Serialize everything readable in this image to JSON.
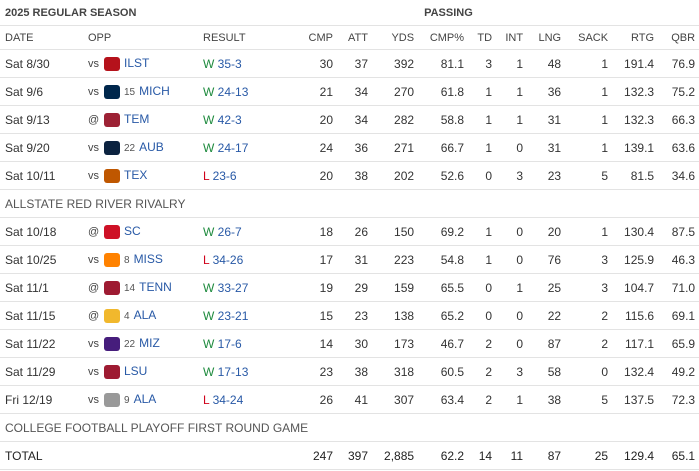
{
  "header": {
    "season": "2025 REGULAR SEASON",
    "group": "PASSING",
    "columns": [
      "DATE",
      "OPP",
      "RESULT",
      "CMP",
      "ATT",
      "YDS",
      "CMP%",
      "TD",
      "INT",
      "LNG",
      "SACK",
      "RTG",
      "QBR"
    ]
  },
  "rows": [
    {
      "date": "Sat 8/30",
      "site": "vs",
      "team": "ILST",
      "result": "W",
      "score": "35-3",
      "stats": [
        "30",
        "37",
        "392",
        "81.1",
        "3",
        "1",
        "48",
        "1",
        "191.4",
        "76.9"
      ]
    },
    {
      "date": "Sat 9/6",
      "site": "vs",
      "rank": "15",
      "team": "MICH",
      "result": "W",
      "score": "24-13",
      "stats": [
        "21",
        "34",
        "270",
        "61.8",
        "1",
        "1",
        "36",
        "1",
        "132.3",
        "75.2"
      ]
    },
    {
      "date": "Sat 9/13",
      "site": "@",
      "team": "TEM",
      "result": "W",
      "score": "42-3",
      "stats": [
        "20",
        "34",
        "282",
        "58.8",
        "1",
        "1",
        "31",
        "1",
        "132.3",
        "66.3"
      ]
    },
    {
      "date": "Sat 9/20",
      "site": "vs",
      "rank": "22",
      "team": "AUB",
      "result": "W",
      "score": "24-17",
      "stats": [
        "24",
        "36",
        "271",
        "66.7",
        "1",
        "0",
        "31",
        "1",
        "139.1",
        "63.6"
      ]
    },
    {
      "date": "Sat 10/11",
      "site": "vs",
      "team": "TEX",
      "result": "L",
      "score": "23-6",
      "stats": [
        "20",
        "38",
        "202",
        "52.6",
        "0",
        "3",
        "23",
        "5",
        "81.5",
        "34.6"
      ]
    },
    {
      "section": "ALLSTATE RED RIVER RIVALRY"
    },
    {
      "date": "Sat 10/18",
      "site": "@",
      "team": "SC",
      "result": "W",
      "score": "26-7",
      "stats": [
        "18",
        "26",
        "150",
        "69.2",
        "1",
        "0",
        "20",
        "1",
        "130.4",
        "87.5"
      ]
    },
    {
      "date": "Sat 10/25",
      "site": "vs",
      "rank": "8",
      "team": "MISS",
      "result": "L",
      "score": "34-26",
      "stats": [
        "17",
        "31",
        "223",
        "54.8",
        "1",
        "0",
        "76",
        "3",
        "125.9",
        "46.3"
      ]
    },
    {
      "date": "Sat 11/1",
      "site": "@",
      "rank": "14",
      "team": "TENN",
      "result": "W",
      "score": "33-27",
      "stats": [
        "19",
        "29",
        "159",
        "65.5",
        "0",
        "1",
        "25",
        "3",
        "104.7",
        "71.0"
      ]
    },
    {
      "date": "Sat 11/15",
      "site": "@",
      "rank": "4",
      "team": "ALA",
      "result": "W",
      "score": "23-21",
      "stats": [
        "15",
        "23",
        "138",
        "65.2",
        "0",
        "0",
        "22",
        "2",
        "115.6",
        "69.1"
      ]
    },
    {
      "date": "Sat 11/22",
      "site": "vs",
      "rank": "22",
      "team": "MIZ",
      "result": "W",
      "score": "17-6",
      "stats": [
        "14",
        "30",
        "173",
        "46.7",
        "2",
        "0",
        "87",
        "2",
        "117.1",
        "65.9"
      ]
    },
    {
      "date": "Sat 11/29",
      "site": "vs",
      "team": "LSU",
      "result": "W",
      "score": "17-13",
      "stats": [
        "23",
        "38",
        "318",
        "60.5",
        "2",
        "3",
        "58",
        "0",
        "132.4",
        "49.2"
      ]
    },
    {
      "date": "Fri 12/19",
      "site": "vs",
      "rank": "9",
      "team": "ALA",
      "result": "L",
      "score": "34-24",
      "stats": [
        "26",
        "41",
        "307",
        "63.4",
        "2",
        "1",
        "38",
        "5",
        "137.5",
        "72.3"
      ]
    },
    {
      "section": "COLLEGE FOOTBALL PLAYOFF FIRST ROUND GAME"
    }
  ],
  "total": {
    "label": "TOTAL",
    "stats": [
      "247",
      "397",
      "2,885",
      "62.2",
      "14",
      "11",
      "87",
      "25",
      "129.4",
      "65.1"
    ]
  }
}
